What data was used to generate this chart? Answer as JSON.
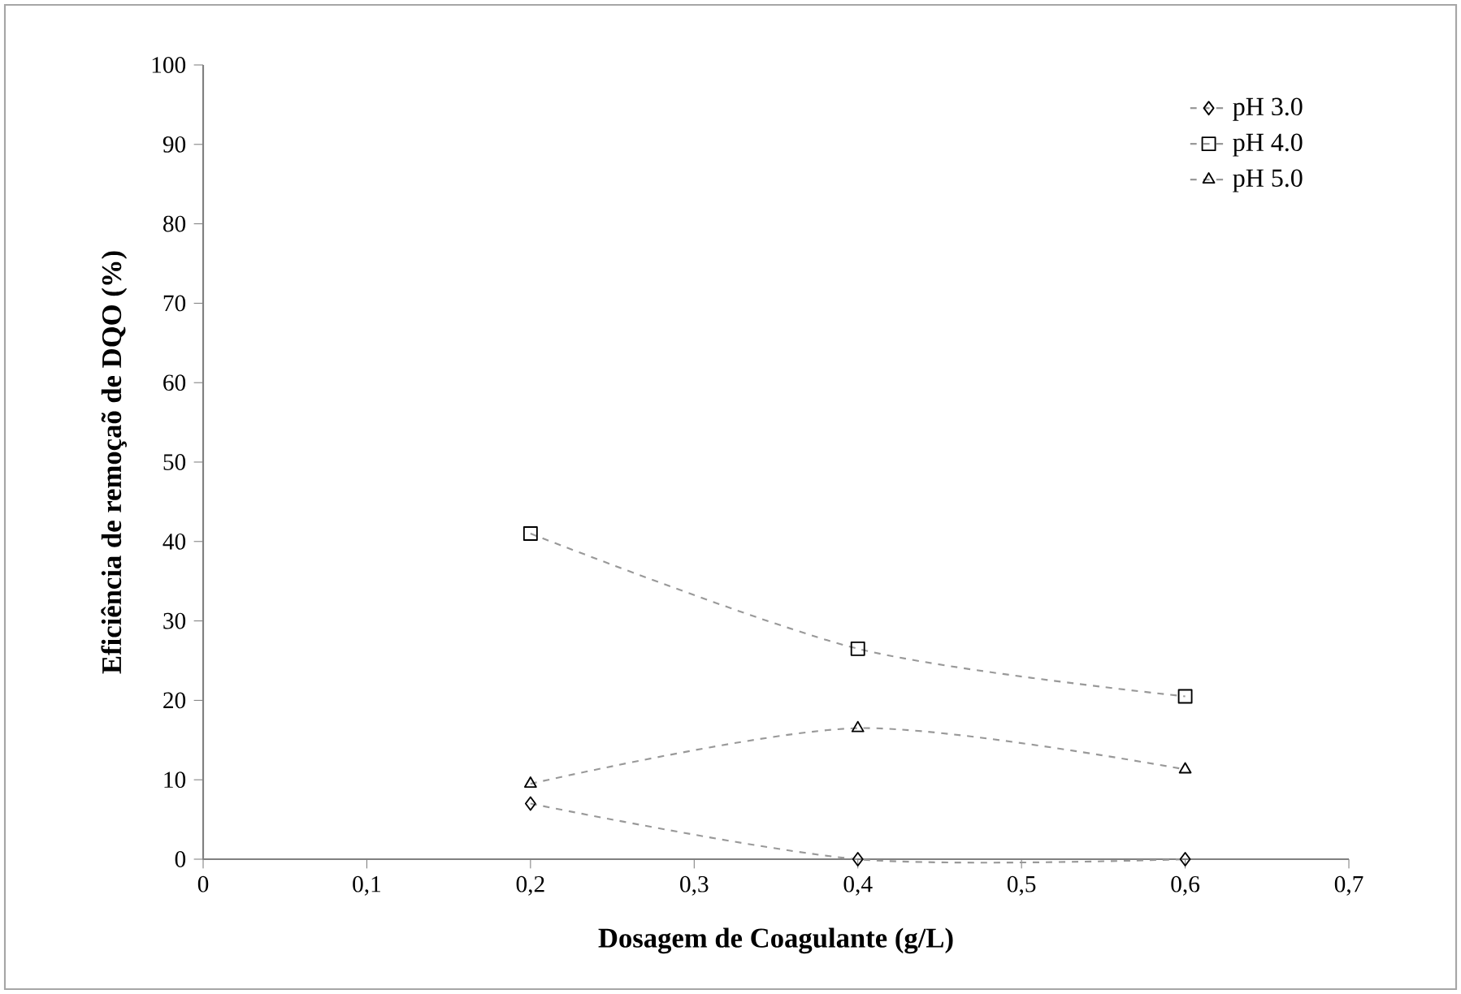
{
  "chart_data": {
    "type": "line",
    "xlabel": "Dosagem de Coagulante (g/L)",
    "ylabel": "Eficiência de remoçaõ de DQO (%)",
    "x": [
      0.2,
      0.4,
      0.6
    ],
    "series": [
      {
        "name": "pH 3.0",
        "color": "#999999",
        "marker": "diamond",
        "values": [
          7,
          0,
          0
        ]
      },
      {
        "name": "pH 4.0",
        "color": "#999999",
        "marker": "square",
        "values": [
          41,
          26.5,
          20.5
        ]
      },
      {
        "name": "pH 5.0",
        "color": "#999999",
        "marker": "triangle",
        "values": [
          9.5,
          16.5,
          11.3
        ]
      }
    ],
    "xlim": [
      0,
      0.7
    ],
    "xticks": [
      0,
      {
        "value": 0.1,
        "label": "0,1"
      },
      {
        "value": 0.2,
        "label": "0,2"
      },
      {
        "value": 0.3,
        "label": "0,3"
      },
      {
        "value": 0.4,
        "label": "0,4"
      },
      {
        "value": 0.5,
        "label": "0,5"
      },
      {
        "value": 0.6,
        "label": "0,6"
      },
      {
        "value": 0.7,
        "label": "0,7"
      }
    ],
    "ylim": [
      0,
      100
    ],
    "yticks": [
      0,
      10,
      20,
      30,
      40,
      50,
      60,
      70,
      80,
      90,
      100
    ],
    "legend": "top right",
    "line_style": "dashed"
  }
}
